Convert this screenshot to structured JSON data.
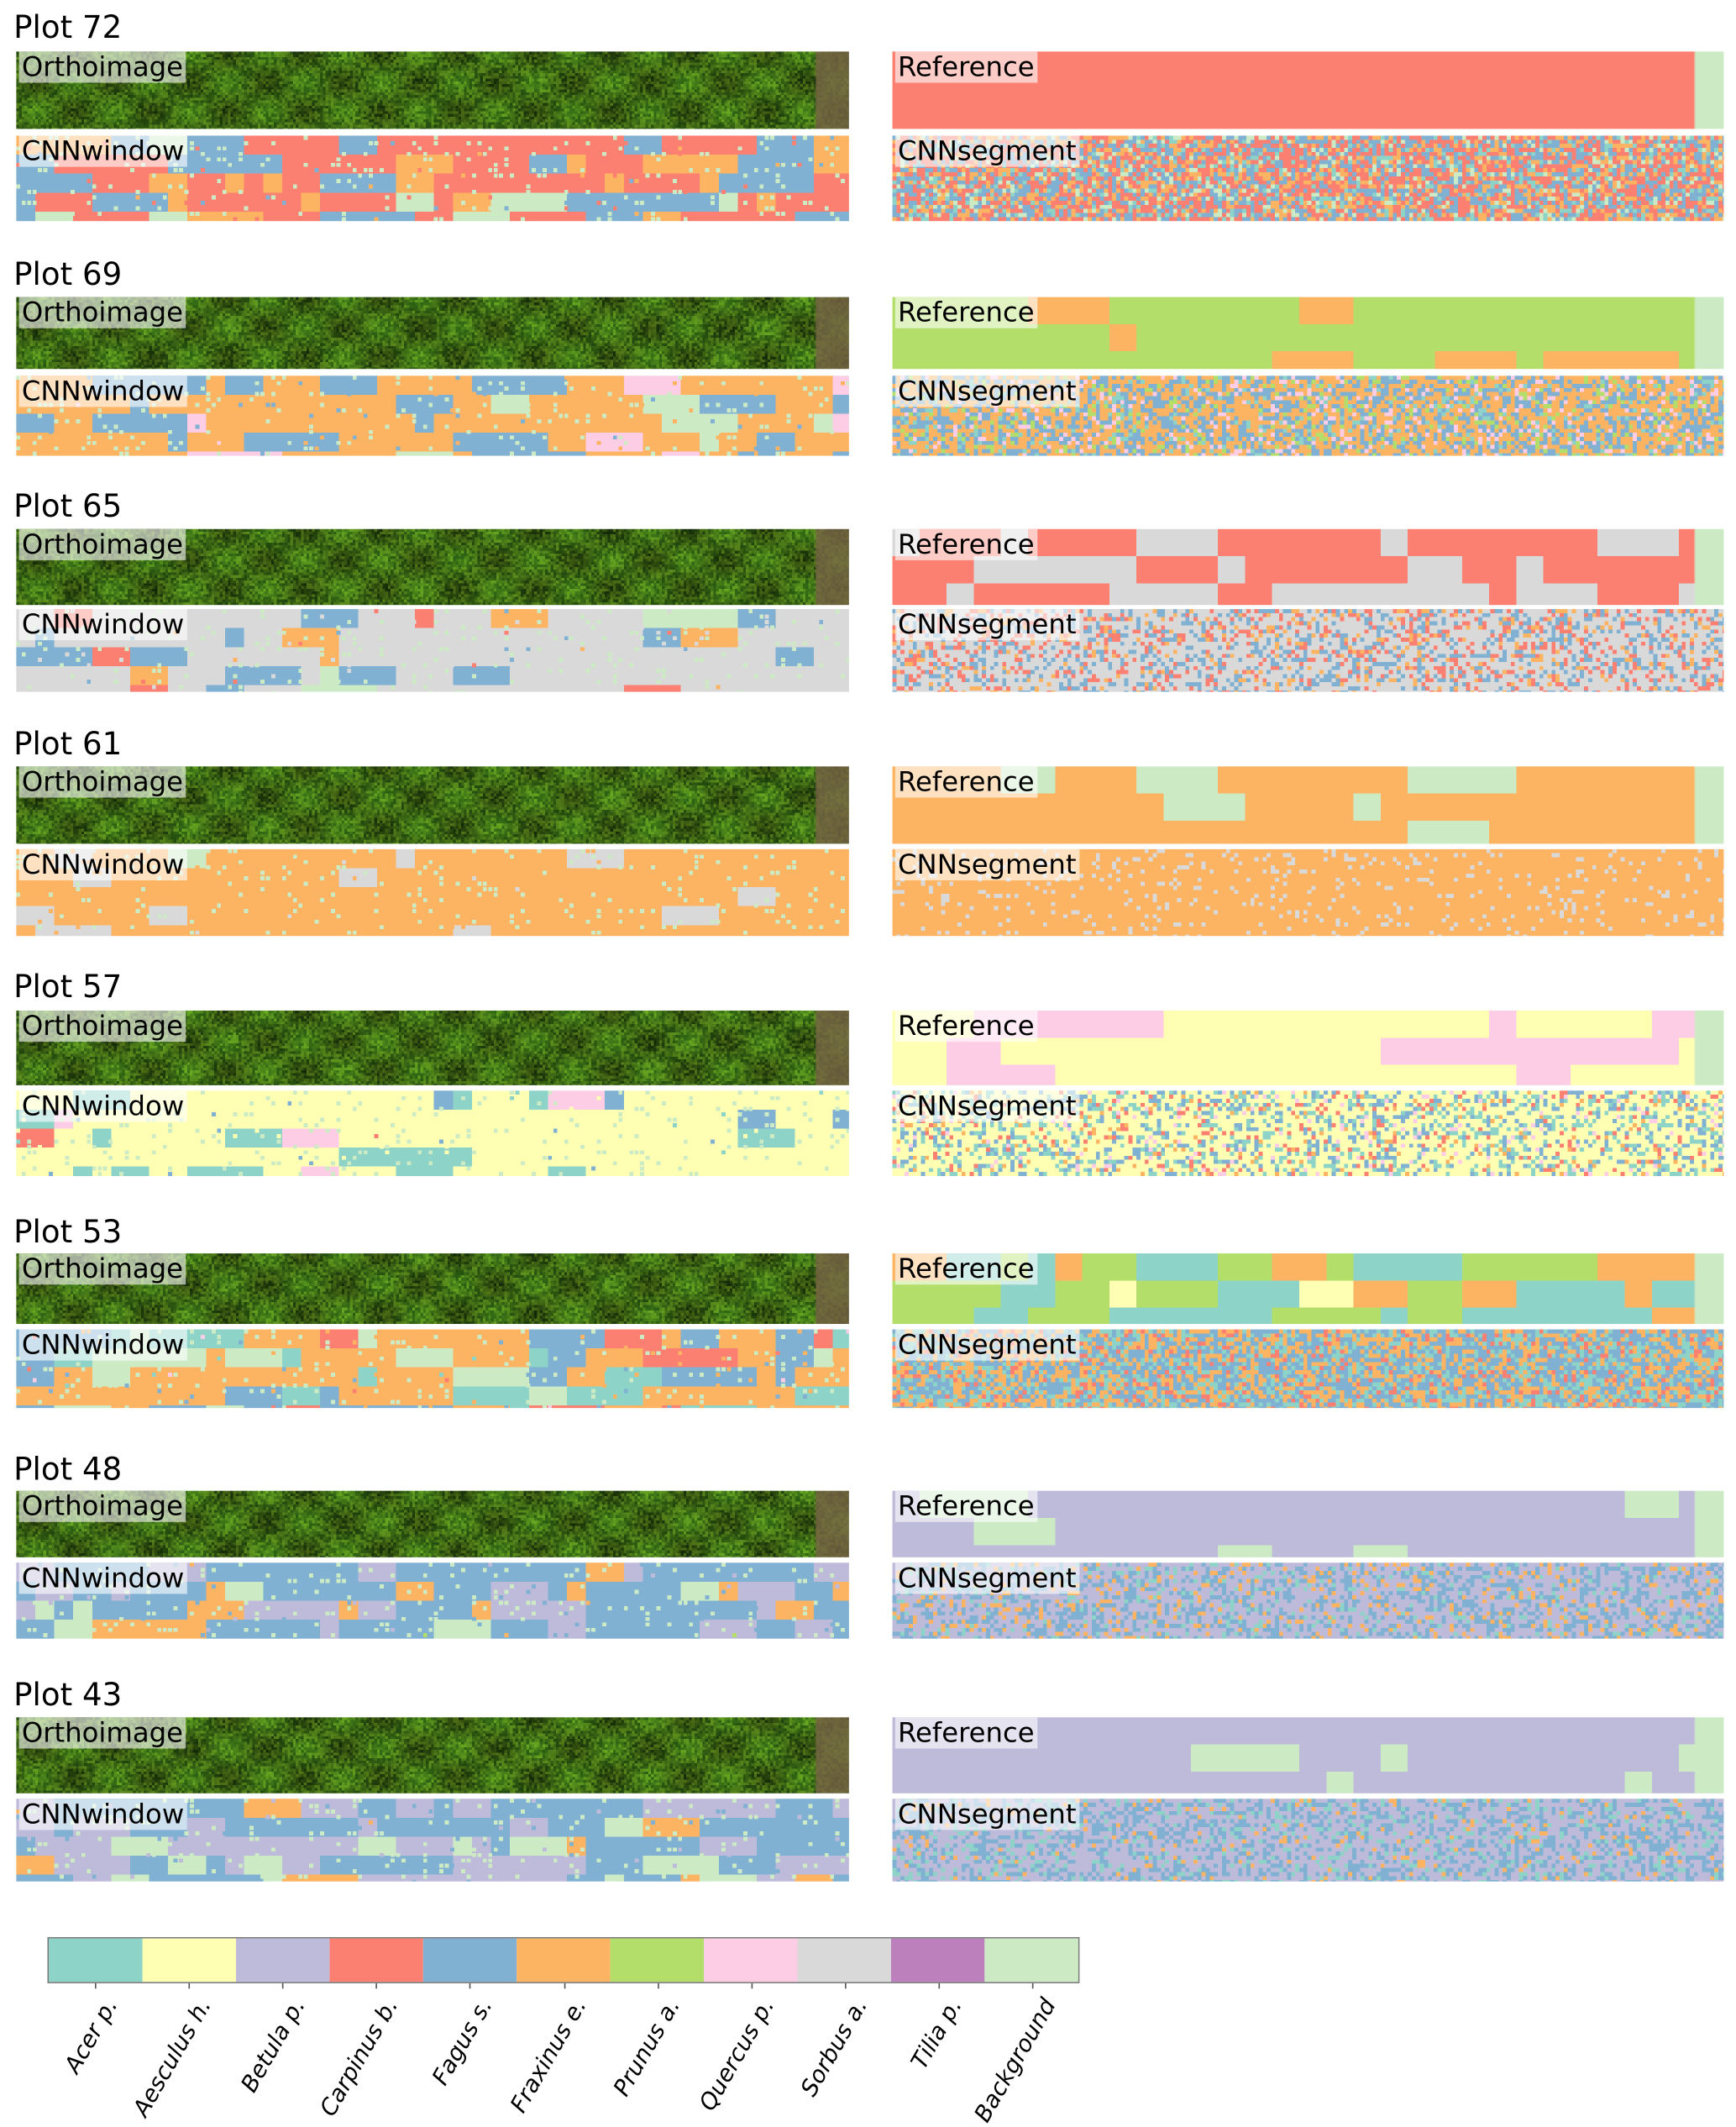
{
  "panel_labels": {
    "ortho": "Orthoimage",
    "reference": "Reference",
    "cnnwindow": "CNNwindow",
    "cnnsegment": "CNNsegment"
  },
  "plots": [
    {
      "title": "Plot 72"
    },
    {
      "title": "Plot 69"
    },
    {
      "title": "Plot 65"
    },
    {
      "title": "Plot 61"
    },
    {
      "title": "Plot 57"
    },
    {
      "title": "Plot 53"
    },
    {
      "title": "Plot 48"
    },
    {
      "title": "Plot 43"
    }
  ],
  "legend": [
    {
      "label": "Acer p.",
      "color": "#8dd3c7"
    },
    {
      "label": "Aesculus h.",
      "color": "#ffffb3"
    },
    {
      "label": "Betula p.",
      "color": "#bebada"
    },
    {
      "label": "Carpinus b.",
      "color": "#fb8072"
    },
    {
      "label": "Fagus s.",
      "color": "#80b1d3"
    },
    {
      "label": "Fraxinus e.",
      "color": "#fdb462"
    },
    {
      "label": "Prunus a.",
      "color": "#b3de69"
    },
    {
      "label": "Quercus p.",
      "color": "#fccde5"
    },
    {
      "label": "Sorbus a.",
      "color": "#d9d9d9"
    },
    {
      "label": "Tilia p.",
      "color": "#bc80bd"
    },
    {
      "label": "Background",
      "color": "#ccebc5"
    }
  ]
}
